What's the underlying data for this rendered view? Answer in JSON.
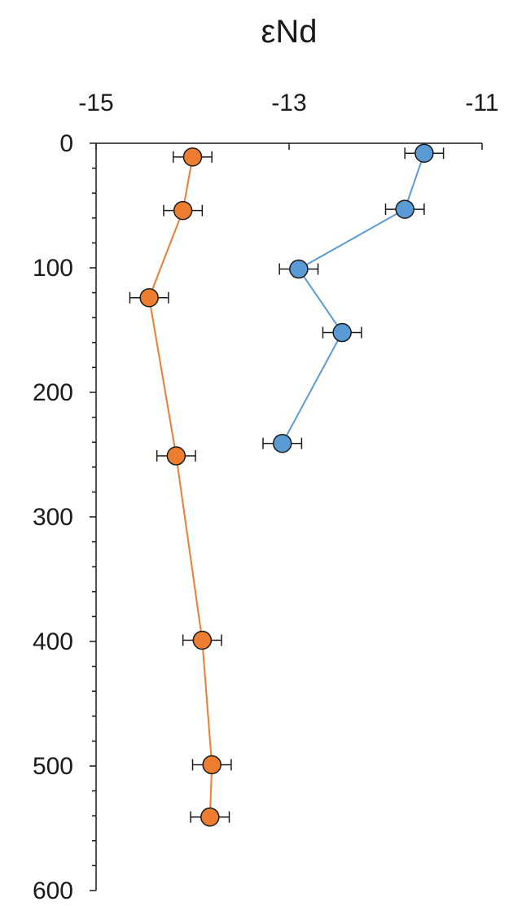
{
  "chart_data": {
    "type": "scatter",
    "title": "εNd",
    "x_axis": {
      "position": "top",
      "range": [
        -15,
        -11
      ],
      "ticks": [
        -15,
        -13,
        -11
      ],
      "tick_labels": [
        "-15",
        "-13",
        "-11"
      ],
      "label": ""
    },
    "y_axis": {
      "inverted": true,
      "range": [
        0,
        600
      ],
      "ticks": [
        0,
        100,
        200,
        300,
        400,
        500,
        600
      ],
      "tick_labels": [
        "0",
        "100",
        "200",
        "300",
        "400",
        "500",
        "600"
      ],
      "minor_step": 20,
      "label": ""
    },
    "grid": false,
    "legend": "none",
    "series": [
      {
        "color": "#5b9bd5",
        "line": true,
        "error_bar": 0.2,
        "points": [
          {
            "x": -11.6,
            "y": 8
          },
          {
            "x": -11.8,
            "y": 53
          },
          {
            "x": -12.9,
            "y": 101
          },
          {
            "x": -12.45,
            "y": 152
          },
          {
            "x": -13.07,
            "y": 241
          }
        ]
      },
      {
        "color": "#ed7d31",
        "line": true,
        "error_bar": 0.2,
        "points": [
          {
            "x": -14.0,
            "y": 11
          },
          {
            "x": -14.1,
            "y": 54
          },
          {
            "x": -14.45,
            "y": 124
          },
          {
            "x": -14.17,
            "y": 251
          },
          {
            "x": -13.9,
            "y": 399
          },
          {
            "x": -13.8,
            "y": 499
          },
          {
            "x": -13.82,
            "y": 541
          }
        ]
      }
    ]
  }
}
